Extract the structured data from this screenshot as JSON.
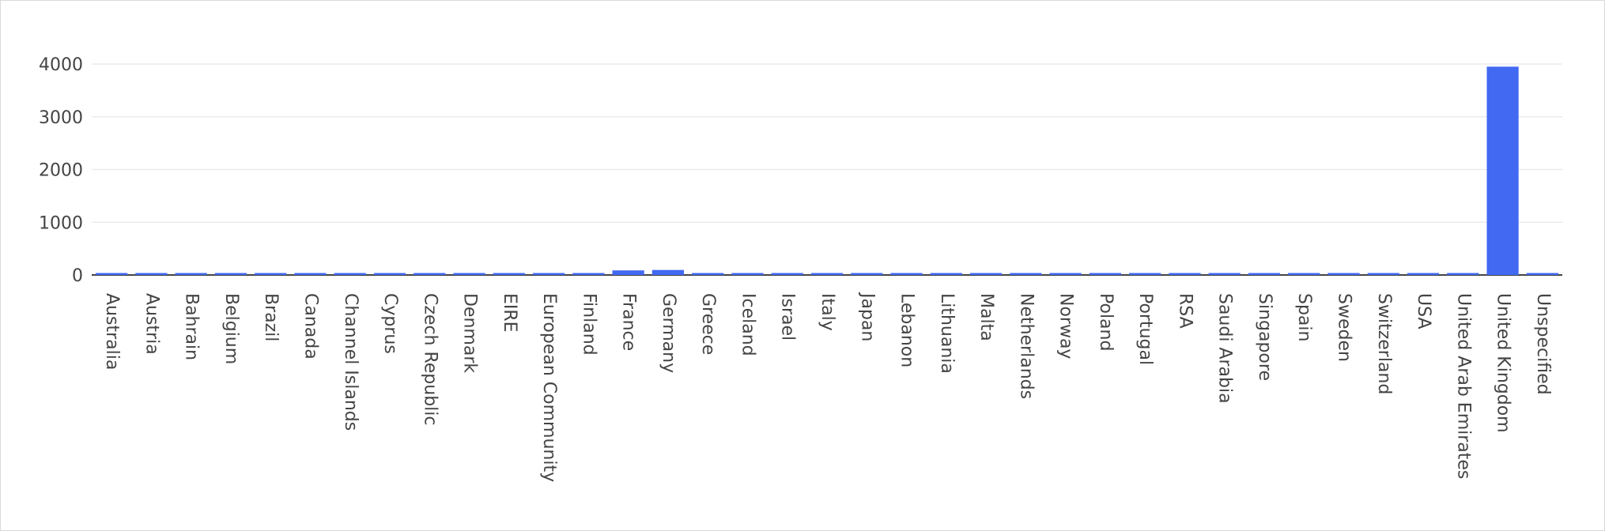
{
  "chart_data": {
    "type": "bar",
    "title": "",
    "xlabel": "",
    "ylabel": "",
    "ylim": [
      0,
      4200
    ],
    "yticks": [
      0,
      1000,
      2000,
      3000,
      4000
    ],
    "grid": true,
    "color": "#4169f2",
    "categories": [
      "Australia",
      "Austria",
      "Bahrain",
      "Belgium",
      "Brazil",
      "Canada",
      "Channel Islands",
      "Cyprus",
      "Czech Republic",
      "Denmark",
      "EIRE",
      "European Community",
      "Finland",
      "France",
      "Germany",
      "Greece",
      "Iceland",
      "Israel",
      "Italy",
      "Japan",
      "Lebanon",
      "Lithuania",
      "Malta",
      "Netherlands",
      "Norway",
      "Poland",
      "Portugal",
      "RSA",
      "Saudi Arabia",
      "Singapore",
      "Spain",
      "Sweden",
      "Switzerland",
      "USA",
      "United Arab Emirates",
      "United Kingdom",
      "Unspecified"
    ],
    "values": [
      9,
      12,
      2,
      25,
      1,
      4,
      9,
      8,
      1,
      9,
      3,
      1,
      12,
      87,
      95,
      4,
      1,
      4,
      15,
      8,
      1,
      1,
      2,
      9,
      10,
      24,
      19,
      1,
      1,
      1,
      31,
      8,
      21,
      4,
      2,
      3950,
      4
    ]
  }
}
